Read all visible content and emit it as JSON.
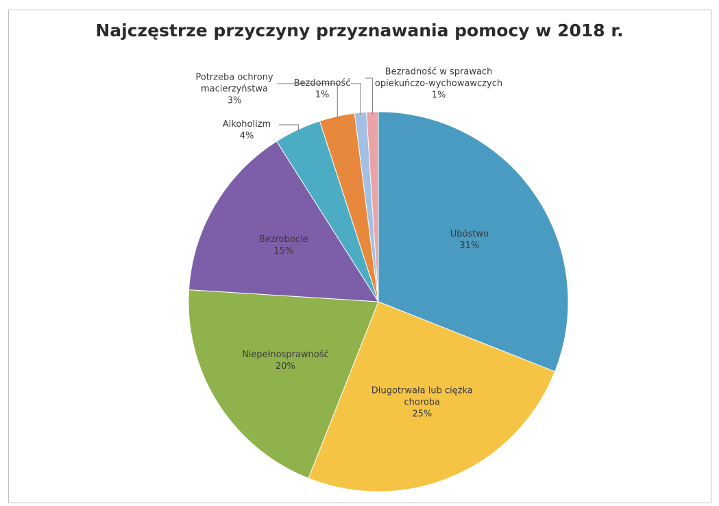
{
  "chart_data": {
    "type": "pie",
    "title": "Najczęstrze przyczyny przyznawania pomocy w 2018 r.",
    "categories": [
      "Ubóstwo",
      "Długotrwała lub ciężka choroba",
      "Niepełnosprawność",
      "Bezrobocie",
      "Alkoholizm",
      "Potrzeba ochrony macierzyństwa",
      "Bezdomność",
      "Bezradność w sprawach opiekuńczo-wychowawczych"
    ],
    "values": [
      31,
      25,
      20,
      15,
      4,
      3,
      1,
      1
    ],
    "value_labels": [
      "31%",
      "25%",
      "20%",
      "15%",
      "4%",
      "3%",
      "1%",
      "1%"
    ],
    "colors": [
      "#4a9bc1",
      "#f6c445",
      "#8fb24c",
      "#7c5fa8",
      "#4cacc4",
      "#e8883c",
      "#a3bfe4",
      "#e9a3a6"
    ]
  }
}
